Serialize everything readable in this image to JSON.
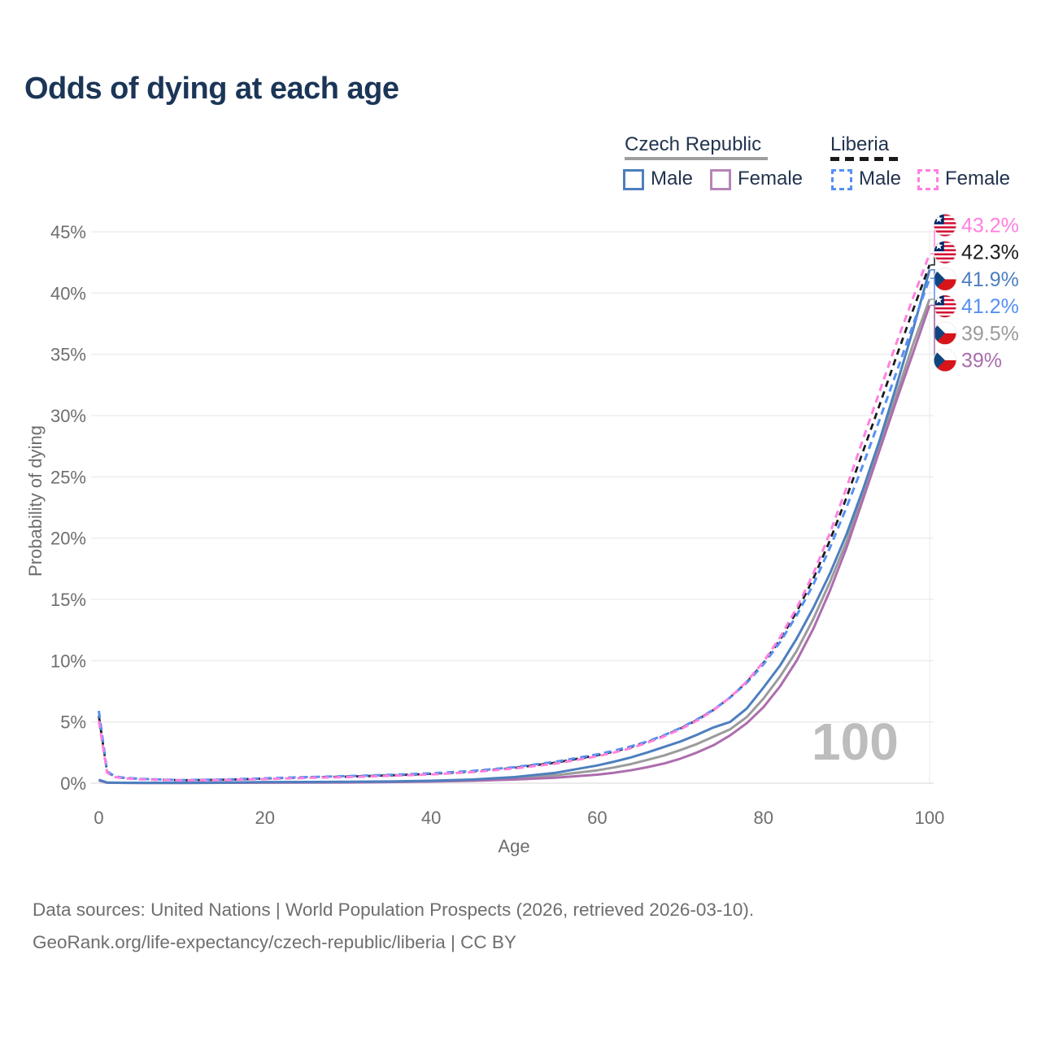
{
  "title": "Odds of dying at each age",
  "legend": {
    "groups": [
      {
        "label": "Czech Republic",
        "underline_color": "#9e9e9e",
        "underline_style": "solid"
      },
      {
        "label": "Liberia",
        "underline_color": "#1a1a1a",
        "underline_style": "dashed"
      }
    ],
    "items": [
      {
        "label": "Male",
        "color": "#4d7fbe",
        "dashed": false
      },
      {
        "label": "Female",
        "color": "#b684b6",
        "dashed": false
      },
      {
        "label": "Male",
        "color": "#5590f2",
        "dashed": true
      },
      {
        "label": "Female",
        "color": "#ff80e0",
        "dashed": true
      }
    ]
  },
  "watermark": "100",
  "footer": {
    "line1": "Data sources: United Nations | World Population Prospects (2026, retrieved 2026-03-10).",
    "line2": "GeoRank.org/life-expectancy/czech-republic/liberia | CC BY"
  },
  "chart_data": {
    "type": "line",
    "title": "Odds of dying at each age",
    "xlabel": "Age",
    "ylabel": "Probability of dying",
    "xlim": [
      0,
      100
    ],
    "ylim": [
      0,
      45
    ],
    "xticks": [
      "0",
      "20",
      "40",
      "60",
      "80",
      "100"
    ],
    "xtick_values": [
      0,
      20,
      40,
      60,
      80,
      100
    ],
    "yticks": [
      "0%",
      "5%",
      "10%",
      "15%",
      "20%",
      "25%",
      "30%",
      "35%",
      "40%",
      "45%"
    ],
    "ytick_values": [
      0,
      5,
      10,
      15,
      20,
      25,
      30,
      35,
      40,
      45
    ],
    "grid": "horizontal",
    "legend_position": "top-right",
    "x": [
      0,
      1,
      2,
      3,
      5,
      10,
      15,
      20,
      25,
      30,
      35,
      40,
      45,
      50,
      55,
      60,
      62,
      64,
      66,
      68,
      70,
      72,
      74,
      76,
      78,
      80,
      82,
      84,
      86,
      88,
      90,
      92,
      94,
      96,
      98,
      100
    ],
    "series": [
      {
        "id": "czech-both",
        "name": "Czech Republic — Both sexes",
        "color": "#9b9b9b",
        "dash": null,
        "width": 3,
        "values": [
          0.25,
          0.045,
          0.035,
          0.03,
          0.025,
          0.025,
          0.04,
          0.065,
          0.075,
          0.085,
          0.115,
          0.165,
          0.25,
          0.4,
          0.65,
          1.05,
          1.28,
          1.55,
          1.9,
          2.25,
          2.7,
          3.2,
          3.8,
          4.4,
          5.4,
          6.9,
          8.7,
          10.8,
          13.4,
          16.4,
          19.7,
          23.6,
          27.6,
          31.7,
          35.8,
          39.5
        ]
      },
      {
        "id": "czech-female",
        "name": "Czech Republic — Female",
        "color": "#ad6dad",
        "dash": null,
        "width": 3,
        "values": [
          0.22,
          0.04,
          0.03,
          0.025,
          0.02,
          0.02,
          0.03,
          0.04,
          0.05,
          0.06,
          0.09,
          0.13,
          0.2,
          0.3,
          0.45,
          0.7,
          0.85,
          1.05,
          1.3,
          1.6,
          2.0,
          2.5,
          3.1,
          3.9,
          4.9,
          6.2,
          7.9,
          10.0,
          12.6,
          15.7,
          19.2,
          23.2,
          27.2,
          31.2,
          35.1,
          39.0
        ]
      },
      {
        "id": "czech-male",
        "name": "Czech Republic — Male",
        "color": "#4d7fbe",
        "dash": null,
        "width": 3,
        "values": [
          0.28,
          0.05,
          0.04,
          0.035,
          0.03,
          0.03,
          0.05,
          0.09,
          0.1,
          0.11,
          0.14,
          0.2,
          0.3,
          0.5,
          0.85,
          1.45,
          1.75,
          2.1,
          2.5,
          2.95,
          3.4,
          3.95,
          4.55,
          5.0,
          6.1,
          7.8,
          9.6,
          11.8,
          14.3,
          17.1,
          20.3,
          24.0,
          28.0,
          32.4,
          37.0,
          41.9
        ]
      },
      {
        "id": "liberia-both",
        "name": "Liberia — Both sexes",
        "color": "#1a1a1a",
        "dash": "8 6",
        "width": 2.75,
        "values": [
          5.5,
          0.9,
          0.52,
          0.43,
          0.34,
          0.24,
          0.28,
          0.37,
          0.47,
          0.54,
          0.64,
          0.76,
          0.95,
          1.25,
          1.68,
          2.28,
          2.58,
          2.93,
          3.35,
          3.85,
          4.45,
          5.15,
          5.98,
          7.0,
          8.25,
          9.8,
          11.7,
          14.0,
          16.7,
          19.8,
          23.3,
          27.1,
          30.9,
          34.8,
          38.6,
          42.3
        ]
      },
      {
        "id": "liberia-male",
        "name": "Liberia — Male",
        "color": "#5590f2",
        "dash": "9 6",
        "width": 3,
        "values": [
          5.9,
          0.95,
          0.55,
          0.45,
          0.35,
          0.25,
          0.3,
          0.4,
          0.5,
          0.58,
          0.68,
          0.8,
          1.0,
          1.3,
          1.75,
          2.35,
          2.65,
          3.0,
          3.4,
          3.9,
          4.5,
          5.2,
          6.0,
          7.0,
          8.2,
          9.7,
          11.5,
          13.7,
          16.2,
          19.2,
          22.5,
          26.0,
          29.7,
          33.5,
          37.4,
          41.2
        ]
      },
      {
        "id": "liberia-female",
        "name": "Liberia — Female",
        "color": "#ff80e0",
        "dash": "9 6",
        "width": 3,
        "values": [
          5.1,
          0.85,
          0.5,
          0.4,
          0.32,
          0.22,
          0.26,
          0.34,
          0.43,
          0.5,
          0.6,
          0.72,
          0.9,
          1.2,
          1.6,
          2.2,
          2.5,
          2.85,
          3.3,
          3.8,
          4.4,
          5.1,
          5.95,
          7.0,
          8.3,
          9.9,
          11.9,
          14.3,
          17.1,
          20.4,
          24.1,
          28.1,
          32.0,
          35.9,
          39.6,
          43.2
        ]
      }
    ],
    "end_labels": [
      {
        "text": "43.2%",
        "series": "liberia-female",
        "flag": "liberia",
        "color": "#ff80e0"
      },
      {
        "text": "42.3%",
        "series": "liberia-both",
        "flag": "liberia",
        "color": "#1a1a1a"
      },
      {
        "text": "41.9%",
        "series": "czech-male",
        "flag": "czechia",
        "color": "#4d7fbe"
      },
      {
        "text": "41.2%",
        "series": "liberia-male",
        "flag": "liberia",
        "color": "#5590f2"
      },
      {
        "text": "39.5%",
        "series": "czech-both",
        "flag": "czechia",
        "color": "#9b9b9b"
      },
      {
        "text": "39%",
        "series": "czech-female",
        "flag": "czechia",
        "color": "#a96cad"
      }
    ]
  }
}
